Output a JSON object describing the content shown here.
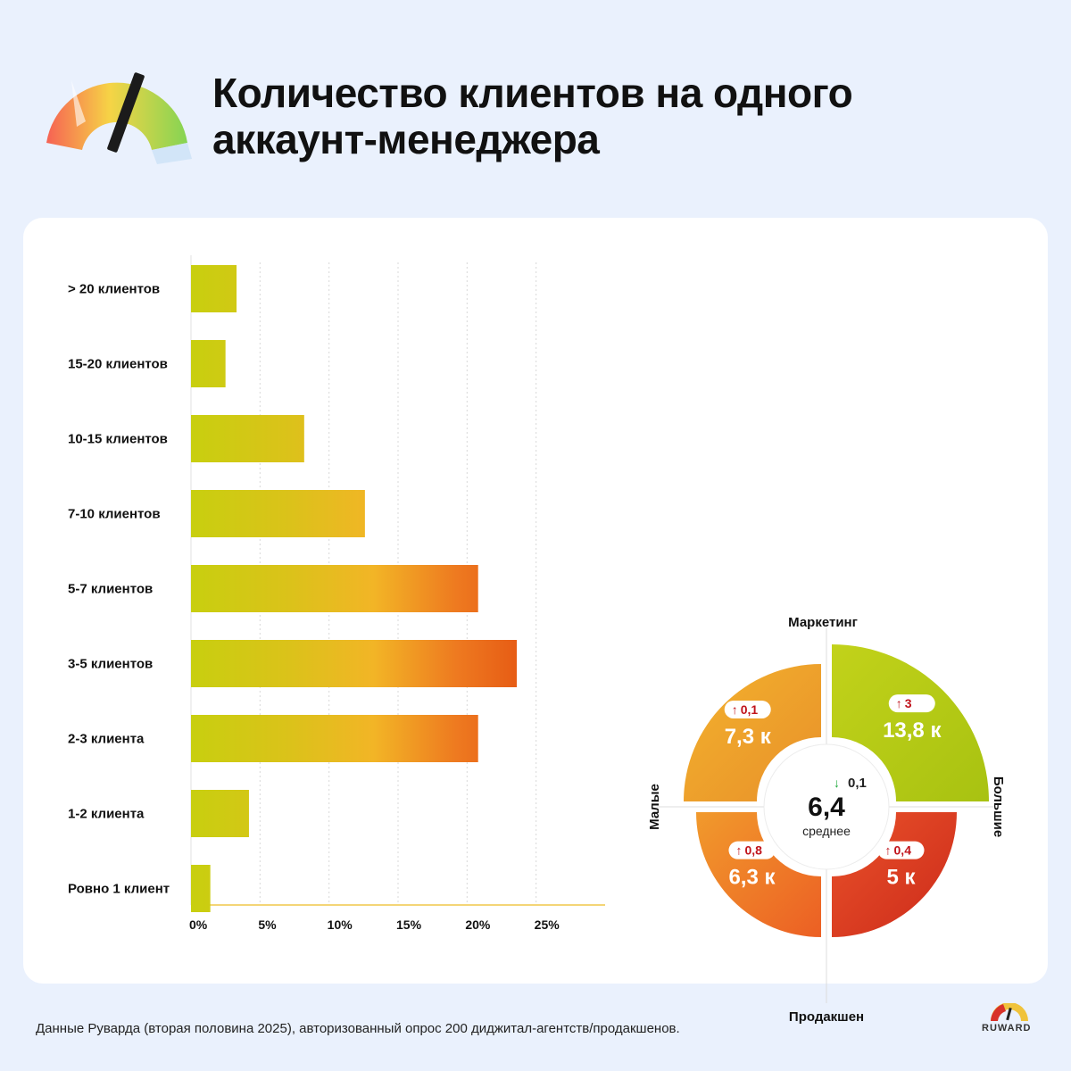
{
  "title_line1": "Количество клиентов на одного",
  "title_line2": "аккаунт-менеджера",
  "chart_data": [
    {
      "type": "bar",
      "orientation": "horizontal",
      "categories": [
        "> 20 клиентов",
        "15-20 клиентов",
        "10-15 клиентов",
        "7-10 клиентов",
        "5-7 клиентов",
        "3-5 клиентов",
        "2-3 клиента",
        "1-2 клиента",
        "Ровно 1 клиент"
      ],
      "values": [
        3.3,
        2.5,
        8.2,
        12.6,
        20.8,
        23.6,
        20.8,
        4.2,
        1.4
      ],
      "xticks": [
        "0%",
        "5%",
        "10%",
        "15%",
        "20%",
        "25%"
      ],
      "xlim": [
        0,
        30
      ],
      "grid": true
    },
    {
      "type": "pie",
      "axes": {
        "top": "Маркетинг",
        "bottom": "Продакшен",
        "left": "Малые",
        "right": "Большие"
      },
      "center": {
        "value": "6,4",
        "label": "среднее",
        "delta": "0,1",
        "delta_dir": "down"
      },
      "segments": [
        {
          "quadrant": "top-right",
          "value": "13,8 к",
          "delta": "3",
          "delta_dir": "up",
          "color": "#b4c817"
        },
        {
          "quadrant": "top-left",
          "value": "7,3 к",
          "delta": "0,1",
          "delta_dir": "up",
          "color": "#eea429"
        },
        {
          "quadrant": "bottom-left",
          "value": "6,3 к",
          "delta": "0,8",
          "delta_dir": "up",
          "color": "#f07a2b"
        },
        {
          "quadrant": "bottom-right",
          "value": "5 к",
          "delta": "0,4",
          "delta_dir": "up",
          "color": "#e03c1c"
        }
      ]
    }
  ],
  "footer": "Данные Руварда (вторая половина 2025), авторизованный опрос 200 диджитал-агентств/продакшенов.",
  "brand": "RUWARD",
  "colors": {
    "background": "#eaf1fd",
    "card": "#ffffff",
    "up": "#c0131b",
    "down": "#1faa3b"
  }
}
